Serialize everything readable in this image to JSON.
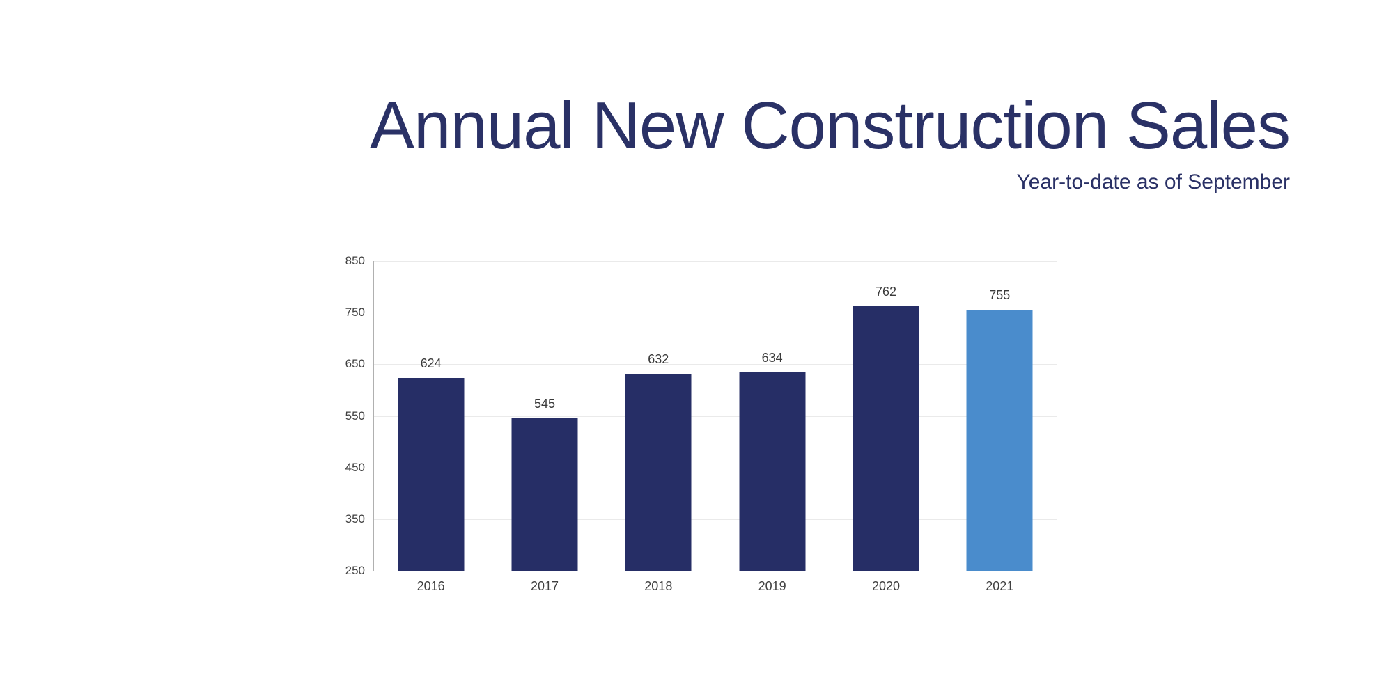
{
  "page": {
    "title": "Annual New Construction Sales",
    "subtitle": "Year-to-date as of September"
  },
  "colors": {
    "background": "#ffffff",
    "title_text": "#2a3166",
    "bar_default": "#262e66",
    "bar_highlight": "#4a8ccc",
    "axis_text": "#404040",
    "data_label_text": "#3a3a3a",
    "grid_line": "#eaeaea",
    "axis_line": "#b0b0b0"
  },
  "chart_data": {
    "type": "bar",
    "title": "Annual New Construction Sales",
    "subtitle": "Year-to-date as of September",
    "categories": [
      "2016",
      "2017",
      "2018",
      "2019",
      "2020",
      "2021"
    ],
    "values": [
      624,
      545,
      632,
      634,
      762,
      755
    ],
    "highlight_category": "2021",
    "xlabel": "",
    "ylabel": "",
    "ylim": [
      250,
      850
    ],
    "y_ticks": [
      250,
      350,
      450,
      550,
      650,
      750,
      850
    ],
    "grid": true,
    "legend": false,
    "data_labels": true
  }
}
